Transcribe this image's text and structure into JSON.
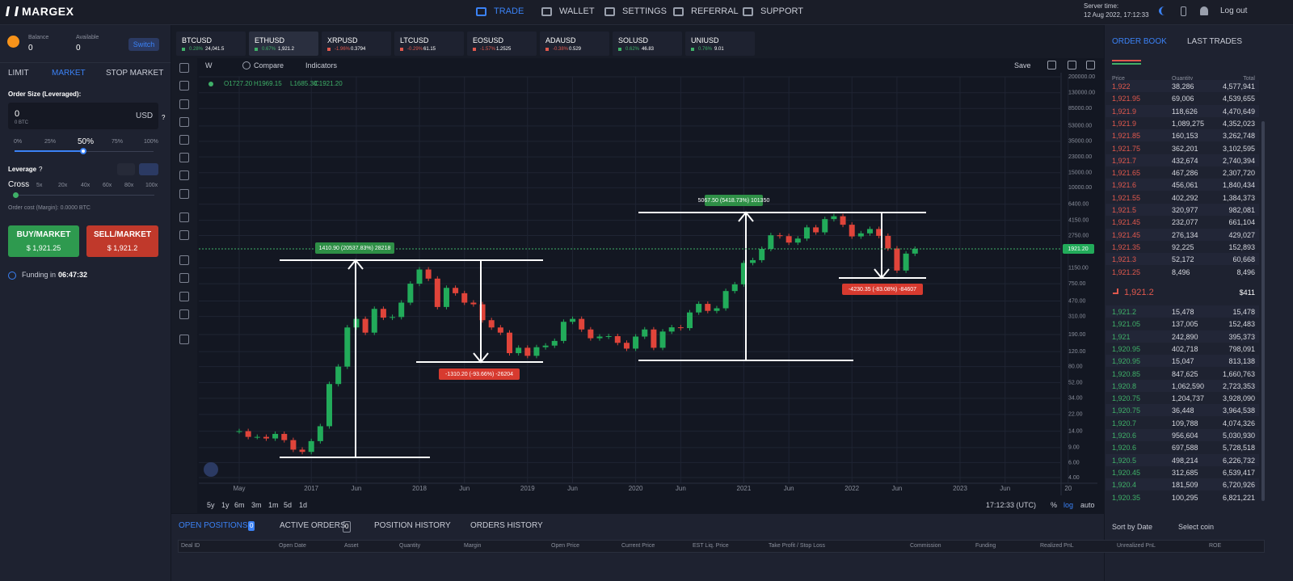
{
  "header": {
    "brand": "MARGEX",
    "nav": [
      "TRADE",
      "WALLET",
      "SETTINGS",
      "REFERRAL",
      "SUPPORT"
    ],
    "server_time_label": "Server time:",
    "server_time": "12 Aug 2022, 17:12:33",
    "logout": "Log out"
  },
  "order_form": {
    "balance_label": "Balance",
    "balance": "0",
    "available_label": "Available",
    "available": "0",
    "switch": "Switch",
    "tabs": [
      "LIMIT",
      "MARKET",
      "STOP MARKET"
    ],
    "order_size_label": "Order Size (Leveraged):",
    "order_size": "0",
    "order_size_btc": "0 BTC",
    "currency": "USD",
    "help": "?",
    "size_steps": [
      "0%",
      "25%",
      "50%",
      "75%",
      "100%"
    ],
    "leverage_label": "Leverage",
    "cross": "Cross",
    "leverage_steps": [
      "5x",
      "20x",
      "40x",
      "60x",
      "80x",
      "100x"
    ],
    "order_cost": "Order cost (Margin): 0.0000 BTC",
    "buy_label": "BUY/MARKET",
    "buy_price": "$ 1,921.25",
    "sell_label": "SELL/MARKET",
    "sell_price": "$ 1,921.2",
    "funding_label": "Funding in",
    "funding_time": "06:47:32"
  },
  "tickers": [
    {
      "symbol": "BTCUSD",
      "change": "0.28%",
      "price": "24,041.5"
    },
    {
      "symbol": "ETHUSD",
      "change": "0.67%",
      "price": "1,921.2"
    },
    {
      "symbol": "XRPUSD",
      "change": "-1.96%",
      "price": "0.3794"
    },
    {
      "symbol": "LTCUSD",
      "change": "-0.29%",
      "price": "61.15"
    },
    {
      "symbol": "EOSUSD",
      "change": "-1.57%",
      "price": "1.2525"
    },
    {
      "symbol": "ADAUSD",
      "change": "-0.38%",
      "price": "0.529"
    },
    {
      "symbol": "SOLUSD",
      "change": "0.62%",
      "price": "46.83"
    },
    {
      "symbol": "UNIUSD",
      "change": "0.76%",
      "price": "9.01"
    }
  ],
  "chart": {
    "type": "candlestick",
    "interval": "W",
    "compare": "Compare",
    "indicators": "Indicators",
    "save": "Save",
    "ohlc": [
      "O1727.20",
      "H1969.15",
      "L1685.30",
      "C1921.20"
    ],
    "scale": "log",
    "ylim": [
      4,
      200000
    ],
    "yticks": [
      {
        "value": 200000,
        "label": "200000.00"
      },
      {
        "value": 130000,
        "label": "130000.00"
      },
      {
        "value": 85000,
        "label": "85000.00"
      },
      {
        "value": 53000,
        "label": "53000.00"
      },
      {
        "value": 35000,
        "label": "35000.00"
      },
      {
        "value": 23000,
        "label": "23000.00"
      },
      {
        "value": 15000,
        "label": "15000.00"
      },
      {
        "value": 10000,
        "label": "10000.00"
      },
      {
        "value": 6400,
        "label": "6400.00"
      },
      {
        "value": 4150,
        "label": "4150.00"
      },
      {
        "value": 2750,
        "label": "2750.00"
      },
      {
        "value": 1150,
        "label": "1150.00"
      },
      {
        "value": 750,
        "label": "750.00"
      },
      {
        "value": 470,
        "label": "470.00"
      },
      {
        "value": 310,
        "label": "310.00"
      },
      {
        "value": 190,
        "label": "190.00"
      },
      {
        "value": 120,
        "label": "120.00"
      },
      {
        "value": 80,
        "label": "80.00"
      },
      {
        "value": 52,
        "label": "52.00"
      },
      {
        "value": 34,
        "label": "34.00"
      },
      {
        "value": 22,
        "label": "22.00"
      },
      {
        "value": 14,
        "label": "14.00"
      },
      {
        "value": 9,
        "label": "9.00"
      },
      {
        "value": 6,
        "label": "6.00"
      },
      {
        "value": 4,
        "label": "4.00"
      }
    ],
    "current_price": {
      "value": 1921.2,
      "label": "1921.20"
    },
    "x_labels": [
      "May",
      "2017",
      "Jun",
      "2018",
      "Jun",
      "2019",
      "Jun",
      "2020",
      "Jun",
      "2021",
      "Jun",
      "2022",
      "Jun",
      "2023",
      "Jun",
      "20"
    ],
    "closes": [
      14,
      12,
      12,
      11.5,
      13,
      11,
      8.5,
      8,
      10.7,
      16,
      50,
      80,
      230,
      290,
      200,
      380,
      300,
      305,
      450,
      750,
      1100,
      860,
      400,
      670,
      580,
      450,
      430,
      280,
      230,
      200,
      115,
      133,
      107,
      135,
      141,
      160,
      268,
      290,
      218,
      172,
      180,
      182,
      152,
      130,
      180,
      218,
      133,
      206,
      231,
      226,
      345,
      435,
      360,
      386,
      615,
      737,
      1314,
      1416,
      1918,
      2773,
      2707,
      2275,
      2536,
      3430,
      3000,
      4288,
      4630,
      3683,
      2688,
      2920,
      3282,
      2727,
      1942,
      1070,
      1690,
      1921
    ],
    "annotations": [
      "1410.90 (20537.83%) 28218",
      "-1310.20 (-93.66%) -26204",
      "5067.50 (5418.73%) 101350",
      "-4230.35 (-83.08%) -84607"
    ]
  },
  "chart_footer": {
    "ranges": [
      "5y",
      "1y",
      "6m",
      "3m",
      "1m",
      "5d",
      "1d"
    ],
    "time": "17:12:33 (UTC)",
    "percent": "%",
    "log": "log",
    "auto": "auto"
  },
  "positions": {
    "tabs": [
      {
        "label": "OPEN POSITIONS",
        "count": "0"
      },
      {
        "label": "ACTIVE ORDERS",
        "count": "0"
      },
      {
        "label": "POSITION HISTORY"
      },
      {
        "label": "ORDERS HISTORY"
      }
    ],
    "sort": "Sort by Date",
    "coin": "Select coin",
    "columns": [
      "Deal ID",
      "Open Date",
      "Asset",
      "Quantity",
      "Margin",
      "Open Price",
      "Current Price",
      "EST Liq. Price",
      "Take Profit / Stop Loss",
      "Commission",
      "Funding",
      "Realized PnL",
      "Unrealized PnL",
      "ROE"
    ]
  },
  "order_book": {
    "tabs": [
      "ORDER BOOK",
      "LAST TRADES"
    ],
    "columns": [
      "Price",
      "Quantity",
      "Total"
    ],
    "asks": [
      [
        "1,922",
        "38,286",
        "4,577,941"
      ],
      [
        "1,921.95",
        "69,006",
        "4,539,655"
      ],
      [
        "1,921.9",
        "118,626",
        "4,470,649"
      ],
      [
        "1,921.9",
        "1,089,275",
        "4,352,023"
      ],
      [
        "1,921.85",
        "160,153",
        "3,262,748"
      ],
      [
        "1,921.75",
        "362,201",
        "3,102,595"
      ],
      [
        "1,921.7",
        "432,674",
        "2,740,394"
      ],
      [
        "1,921.65",
        "467,286",
        "2,307,720"
      ],
      [
        "1,921.6",
        "456,061",
        "1,840,434"
      ],
      [
        "1,921.55",
        "402,292",
        "1,384,373"
      ],
      [
        "1,921.5",
        "320,977",
        "982,081"
      ],
      [
        "1,921.45",
        "232,077",
        "661,104"
      ],
      [
        "1,921.45",
        "276,134",
        "429,027"
      ],
      [
        "1,921.35",
        "92,225",
        "152,893"
      ],
      [
        "1,921.3",
        "52,172",
        "60,668"
      ],
      [
        "1,921.25",
        "8,496",
        "8,496"
      ]
    ],
    "last_price": "1,921.2",
    "last_value": "$411",
    "bids": [
      [
        "1,921.2",
        "15,478",
        "15,478"
      ],
      [
        "1,921.05",
        "137,005",
        "152,483"
      ],
      [
        "1,921",
        "242,890",
        "395,373"
      ],
      [
        "1,920.95",
        "402,718",
        "798,091"
      ],
      [
        "1,920.95",
        "15,047",
        "813,138"
      ],
      [
        "1,920.85",
        "847,625",
        "1,660,763"
      ],
      [
        "1,920.8",
        "1,062,590",
        "2,723,353"
      ],
      [
        "1,920.75",
        "1,204,737",
        "3,928,090"
      ],
      [
        "1,920.75",
        "36,448",
        "3,964,538"
      ],
      [
        "1,920.7",
        "109,788",
        "4,074,326"
      ],
      [
        "1,920.6",
        "956,604",
        "5,030,930"
      ],
      [
        "1,920.6",
        "697,588",
        "5,728,518"
      ],
      [
        "1,920.5",
        "498,214",
        "6,226,732"
      ],
      [
        "1,920.45",
        "312,685",
        "6,539,417"
      ],
      [
        "1,920.4",
        "181,509",
        "6,720,926"
      ],
      [
        "1,920.35",
        "100,295",
        "6,821,221"
      ]
    ]
  }
}
